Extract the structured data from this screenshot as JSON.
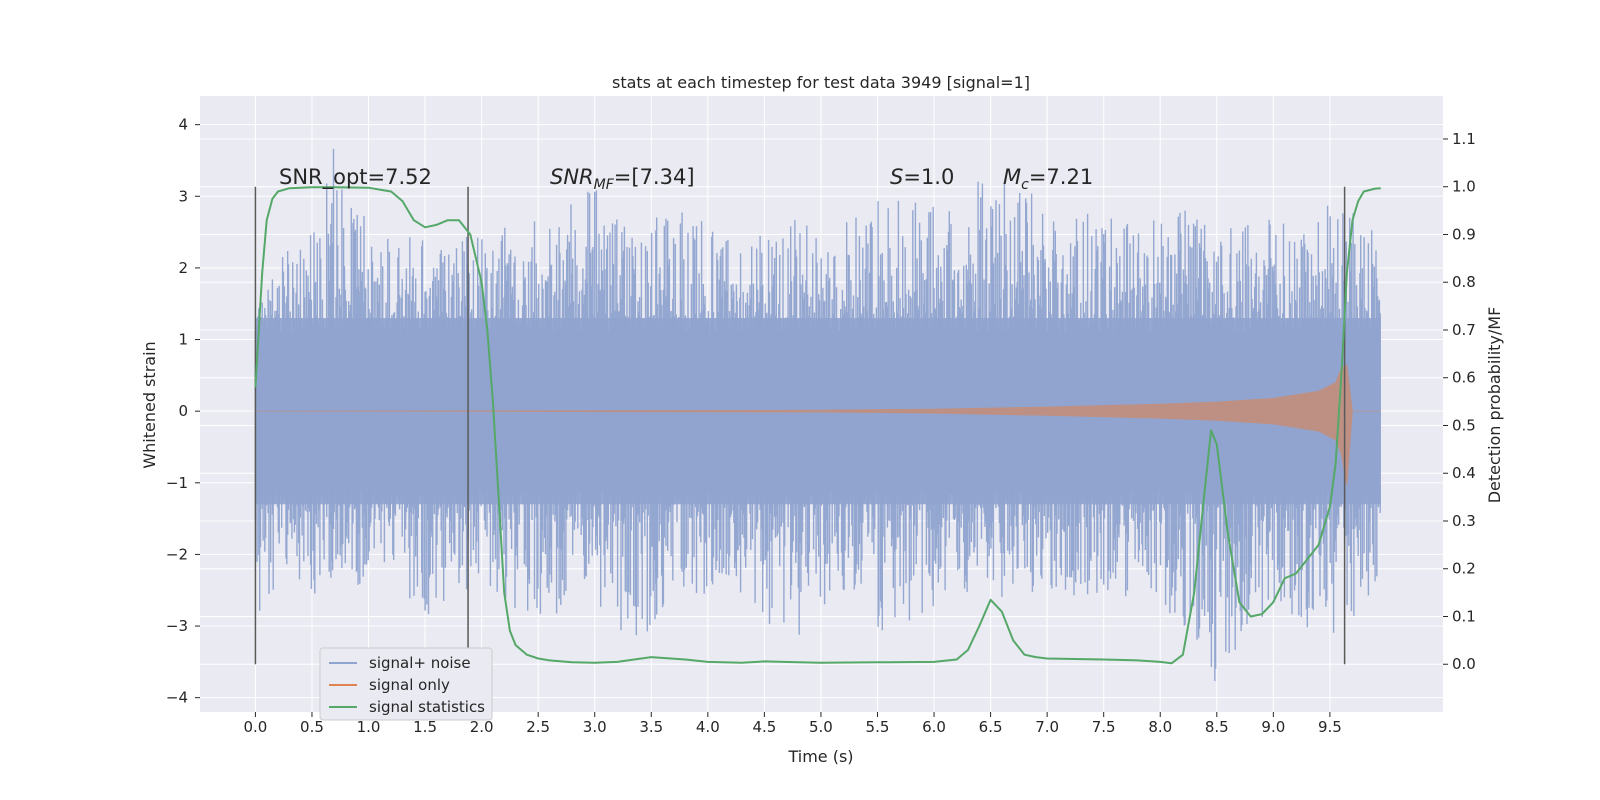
{
  "chart_data": {
    "type": "line",
    "title": "stats at each timestep for test data 3949 [signal=1]",
    "xlabel": "Time (s)",
    "ylabel": "Whitened strain",
    "y2label": "Detection probability/MF",
    "xlim": [
      -0.49,
      10.5
    ],
    "ylim": [
      -4.2,
      4.4
    ],
    "y2lim": [
      -0.1,
      1.19
    ],
    "xticks": [
      "0.0",
      "0.5",
      "1.0",
      "1.5",
      "2.0",
      "2.5",
      "3.0",
      "3.5",
      "4.0",
      "4.5",
      "5.0",
      "5.5",
      "6.0",
      "6.5",
      "7.0",
      "7.5",
      "8.0",
      "8.5",
      "9.0",
      "9.5"
    ],
    "yticks": [
      "4",
      "3",
      "2",
      "1",
      "0",
      "−1",
      "−2",
      "−3",
      "−4"
    ],
    "y2ticks": [
      "1.1",
      "1.0",
      "0.9",
      "0.8",
      "0.7",
      "0.6",
      "0.5",
      "0.4",
      "0.3",
      "0.2",
      "0.1",
      "0.0"
    ],
    "grid": true,
    "legend_position": "lower-left",
    "colors": {
      "noise": "#8fa3cf",
      "signal": "#dd8452",
      "stats": "#55a868",
      "background": "#eaeaf2",
      "vline": "#5a5a5a"
    },
    "annotations": {
      "snr_opt": "SNR_opt=7.52",
      "snr_mf_main": "SNR",
      "snr_mf_sub": "MF",
      "snr_mf_value": "=[7.34]",
      "s_main": "S",
      "s_value": "=1.0",
      "mc_main": "M",
      "mc_sub": "c",
      "mc_value": "=7.21"
    },
    "vertical_lines": [
      0.0,
      1.88,
      9.63
    ],
    "series": [
      {
        "name": "signal+ noise",
        "description_values": "dense whitened-strain time series, 0 to 9.95 s",
        "core_band": [
          -1.3,
          1.3
        ],
        "x": [
          0.0,
          0.25,
          0.5,
          0.66,
          1.0,
          1.5,
          2.0,
          2.5,
          2.95,
          3.3,
          3.75,
          4.25,
          4.7,
          5.15,
          5.6,
          6.2,
          6.45,
          7.0,
          7.5,
          8.0,
          8.35,
          8.45,
          9.0,
          9.6,
          9.95
        ],
        "upper": [
          1.3,
          2.5,
          2.5,
          4.05,
          2.6,
          2.4,
          2.5,
          2.7,
          3.2,
          2.6,
          2.8,
          2.5,
          2.7,
          2.6,
          3.1,
          2.9,
          3.5,
          2.9,
          2.7,
          2.8,
          2.9,
          2.5,
          2.7,
          3.0,
          2.4
        ],
        "lower": [
          -2.9,
          -2.4,
          -2.6,
          -2.4,
          -2.5,
          -2.9,
          -2.4,
          -3.0,
          -2.6,
          -3.35,
          -2.6,
          -2.5,
          -3.35,
          -2.5,
          -3.15,
          -2.5,
          -2.7,
          -2.6,
          -2.6,
          -2.6,
          -3.55,
          -3.85,
          -2.7,
          -3.35,
          -2.4
        ]
      },
      {
        "name": "signal only",
        "x": [
          0.0,
          2.0,
          4.0,
          5.0,
          6.0,
          7.0,
          8.0,
          8.5,
          9.0,
          9.4,
          9.55,
          9.6,
          9.65,
          9.7,
          9.95
        ],
        "envelope": [
          0.0,
          0.005,
          0.01,
          0.015,
          0.03,
          0.06,
          0.1,
          0.13,
          0.18,
          0.28,
          0.4,
          0.6,
          0.65,
          0.0,
          0.0
        ]
      },
      {
        "name": "signal statistics",
        "x": [
          0.0,
          0.03,
          0.06,
          0.1,
          0.15,
          0.2,
          0.3,
          0.5,
          0.7,
          1.0,
          1.2,
          1.3,
          1.4,
          1.5,
          1.6,
          1.7,
          1.8,
          1.9,
          2.0,
          2.05,
          2.1,
          2.15,
          2.2,
          2.25,
          2.3,
          2.4,
          2.5,
          2.6,
          2.8,
          3.0,
          3.2,
          3.5,
          3.8,
          4.0,
          4.3,
          4.5,
          4.8,
          5.0,
          5.5,
          6.0,
          6.2,
          6.3,
          6.4,
          6.5,
          6.6,
          6.7,
          6.8,
          6.9,
          7.0,
          7.5,
          7.8,
          8.0,
          8.1,
          8.2,
          8.3,
          8.4,
          8.45,
          8.5,
          8.6,
          8.7,
          8.8,
          8.9,
          9.0,
          9.1,
          9.2,
          9.3,
          9.4,
          9.5,
          9.55,
          9.6,
          9.65,
          9.7,
          9.75,
          9.8,
          9.9,
          9.95
        ],
        "values": [
          0.58,
          0.7,
          0.82,
          0.93,
          0.975,
          0.99,
          0.997,
          0.999,
          0.999,
          0.998,
          0.99,
          0.97,
          0.93,
          0.915,
          0.92,
          0.93,
          0.93,
          0.9,
          0.8,
          0.7,
          0.55,
          0.35,
          0.15,
          0.07,
          0.04,
          0.02,
          0.012,
          0.008,
          0.004,
          0.003,
          0.005,
          0.015,
          0.01,
          0.005,
          0.003,
          0.006,
          0.004,
          0.003,
          0.004,
          0.005,
          0.01,
          0.03,
          0.08,
          0.135,
          0.11,
          0.05,
          0.02,
          0.015,
          0.012,
          0.01,
          0.008,
          0.005,
          0.002,
          0.02,
          0.15,
          0.38,
          0.49,
          0.46,
          0.27,
          0.13,
          0.1,
          0.105,
          0.13,
          0.18,
          0.19,
          0.22,
          0.25,
          0.33,
          0.42,
          0.6,
          0.82,
          0.93,
          0.97,
          0.99,
          0.996,
          0.997
        ]
      }
    ]
  }
}
